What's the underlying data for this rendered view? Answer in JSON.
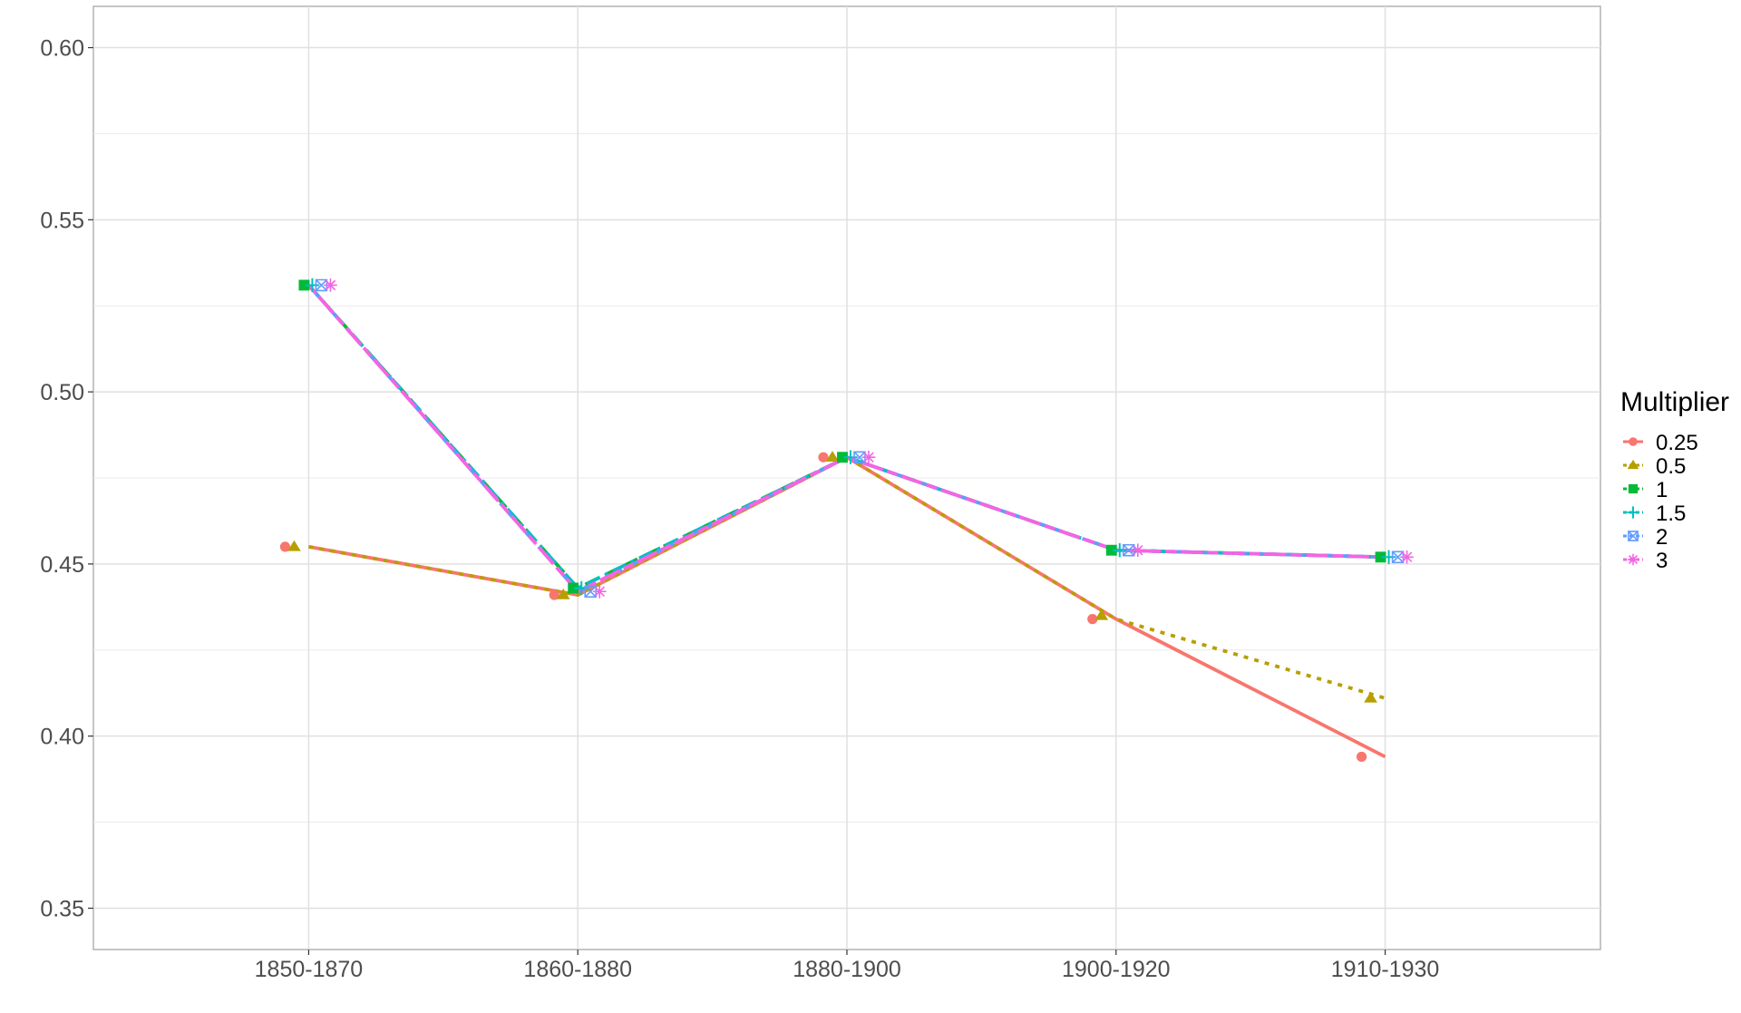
{
  "chart_data": {
    "type": "line",
    "title": "",
    "xlabel": "",
    "ylabel": "",
    "categories": [
      "1850-1870",
      "1860-1880",
      "1880-1900",
      "1900-1920",
      "1910-1930"
    ],
    "ylim": [
      0.338,
      0.612
    ],
    "yticks": [
      "0.35",
      "0.40",
      "0.45",
      "0.50",
      "0.55",
      "0.60"
    ],
    "grid": true,
    "legend": {
      "title": "Multiplier",
      "position": "right"
    },
    "series": [
      {
        "name": "0.25",
        "color": "#F8766D",
        "marker": "circle",
        "dash": "solid",
        "values": [
          0.455,
          0.441,
          0.481,
          0.434,
          0.394
        ],
        "fit": [
          0.455,
          0.441,
          0.481,
          0.434,
          0.394
        ]
      },
      {
        "name": "0.5",
        "color": "#B79F00",
        "marker": "triangle",
        "dash": "dotted",
        "values": [
          0.455,
          0.441,
          0.481,
          0.435,
          0.411
        ],
        "fit": [
          0.455,
          0.441,
          0.481,
          0.434,
          0.411
        ]
      },
      {
        "name": "1",
        "color": "#00BA38",
        "marker": "square",
        "dash": "dashed",
        "values": [
          0.531,
          0.443,
          0.481,
          0.454,
          0.452
        ],
        "fit": [
          0.531,
          0.443,
          0.481,
          0.454,
          0.452
        ]
      },
      {
        "name": "1.5",
        "color": "#00BFC4",
        "marker": "plus",
        "dash": "dotdash",
        "values": [
          0.531,
          0.443,
          0.481,
          0.454,
          0.452
        ],
        "fit": [
          0.531,
          0.443,
          0.481,
          0.454,
          0.452
        ]
      },
      {
        "name": "2",
        "color": "#619CFF",
        "marker": "squarex",
        "dash": "longdash",
        "values": [
          0.531,
          0.442,
          0.481,
          0.454,
          0.452
        ],
        "fit": [
          0.531,
          0.442,
          0.481,
          0.454,
          0.452
        ]
      },
      {
        "name": "3",
        "color": "#F564E3",
        "marker": "asterisk",
        "dash": "twodash",
        "values": [
          0.531,
          0.442,
          0.481,
          0.454,
          0.452
        ],
        "fit": [
          0.531,
          0.442,
          0.481,
          0.454,
          0.452
        ]
      }
    ]
  }
}
